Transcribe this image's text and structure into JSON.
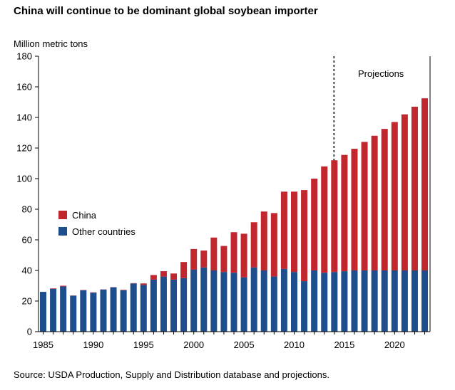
{
  "title": "China will continue to be dominant global soybean importer",
  "source": "Source: USDA Production, Supply and Distribution database and projections.",
  "colors": {
    "china": "#c1272d",
    "other": "#1f4e8c"
  },
  "chart_data": {
    "type": "bar",
    "stacked": true,
    "ylabel": "Million metric tons",
    "ylim": [
      0,
      180
    ],
    "yticks": [
      0,
      20,
      40,
      60,
      80,
      100,
      120,
      140,
      160,
      180
    ],
    "xticks": [
      1985,
      1990,
      1995,
      2000,
      2005,
      2010,
      2015,
      2020
    ],
    "categories": [
      1985,
      1986,
      1987,
      1988,
      1989,
      1990,
      1991,
      1992,
      1993,
      1994,
      1995,
      1996,
      1997,
      1998,
      1999,
      2000,
      2001,
      2002,
      2003,
      2004,
      2005,
      2006,
      2007,
      2008,
      2009,
      2010,
      2011,
      2012,
      2013,
      2014,
      2015,
      2016,
      2017,
      2018,
      2019,
      2020,
      2021,
      2022,
      2023
    ],
    "series": [
      {
        "name": "Other countries",
        "color": "#1f4e8c",
        "values": [
          26,
          28,
          29.5,
          23.5,
          27,
          25.5,
          27.5,
          29,
          27,
          31.5,
          30.5,
          34,
          36,
          34,
          35,
          40.5,
          42,
          40,
          39,
          38.5,
          35.5,
          42,
          40,
          36,
          41,
          39,
          33,
          40,
          38.5,
          39,
          39.5,
          40,
          40,
          40,
          40,
          40,
          40,
          40,
          40
        ]
      },
      {
        "name": "China",
        "color": "#c1272d",
        "values": [
          0,
          0.3,
          0.5,
          0.1,
          0.2,
          0.2,
          0.1,
          0.1,
          0.3,
          0.2,
          1,
          3,
          3.5,
          4,
          10.5,
          13.5,
          11,
          21.5,
          17,
          26.5,
          28.5,
          29.5,
          38.5,
          41.5,
          50.5,
          52.5,
          59.5,
          60,
          69.5,
          73,
          76,
          79.5,
          84,
          88,
          92.5,
          97,
          102,
          107,
          112.5
        ]
      }
    ],
    "legend": {
      "position": "left-middle",
      "items": [
        "China",
        "Other countries"
      ]
    },
    "annotation": {
      "text": "Projections",
      "year": 2014
    },
    "grid": false
  }
}
